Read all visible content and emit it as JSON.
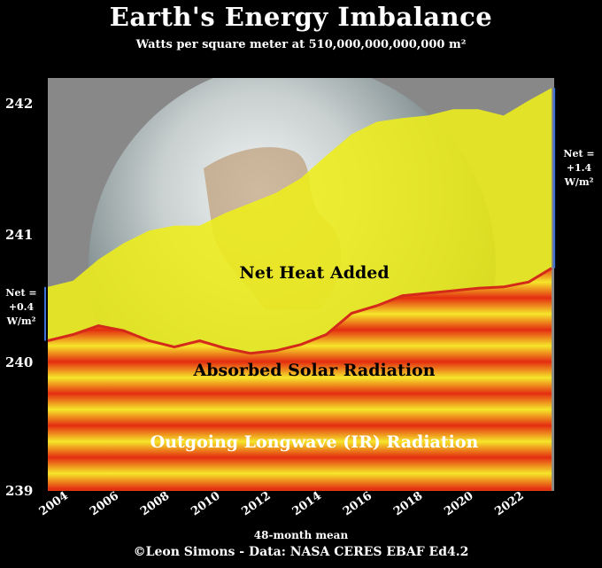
{
  "chart_data": {
    "type": "area",
    "title": "Earth's Energy Imbalance",
    "subtitle": "Watts per square meter at 510,000,000,000,000 m²",
    "xlabel": "48-month mean",
    "credit": "©Leon Simons - Data: NASA CERES EBAF Ed4.2",
    "xlim": [
      2004,
      2024
    ],
    "ylim": [
      239,
      242.3
    ],
    "yticks": [
      "239",
      "240",
      "241",
      "242"
    ],
    "xticks": [
      "2004",
      "2006",
      "2008",
      "2010",
      "2012",
      "2014",
      "2016",
      "2018",
      "2020",
      "2022"
    ],
    "x": [
      2004.0,
      2005.0,
      2006.0,
      2007.0,
      2008.0,
      2009.0,
      2010.0,
      2011.0,
      2012.0,
      2013.0,
      2014.0,
      2015.0,
      2016.0,
      2017.0,
      2018.0,
      2019.0,
      2020.0,
      2021.0,
      2022.0,
      2023.0,
      2023.9
    ],
    "series": [
      {
        "name": "Absorbed Solar Radiation",
        "values": [
          240.63,
          240.68,
          240.85,
          240.98,
          241.08,
          241.12,
          241.12,
          241.22,
          241.3,
          241.38,
          241.5,
          241.68,
          241.85,
          241.95,
          241.98,
          242.0,
          242.05,
          242.05,
          242.0,
          242.12,
          242.22
        ]
      },
      {
        "name": "Outgoing Longwave (IR) Radiation",
        "values": [
          240.2,
          240.25,
          240.32,
          240.28,
          240.2,
          240.15,
          240.2,
          240.14,
          240.1,
          240.12,
          240.17,
          240.25,
          240.42,
          240.48,
          240.56,
          240.58,
          240.6,
          240.62,
          240.63,
          240.67,
          240.78
        ]
      }
    ],
    "annotations": {
      "net_heat": "Net Heat Added",
      "absorbed": "Absorbed Solar Radiation",
      "outgoing": "Outgoing Longwave (IR) Radiation",
      "net_start": [
        "Net =",
        "+0.4",
        "W/m²"
      ],
      "net_end": [
        "Net =",
        "+1.4",
        "W/m²"
      ]
    },
    "colors": {
      "absorbed": "#eeee1a",
      "outgoing_line": "#d42a1a",
      "band_red": "#e42a10",
      "band_yellow": "#f6e62a"
    }
  }
}
